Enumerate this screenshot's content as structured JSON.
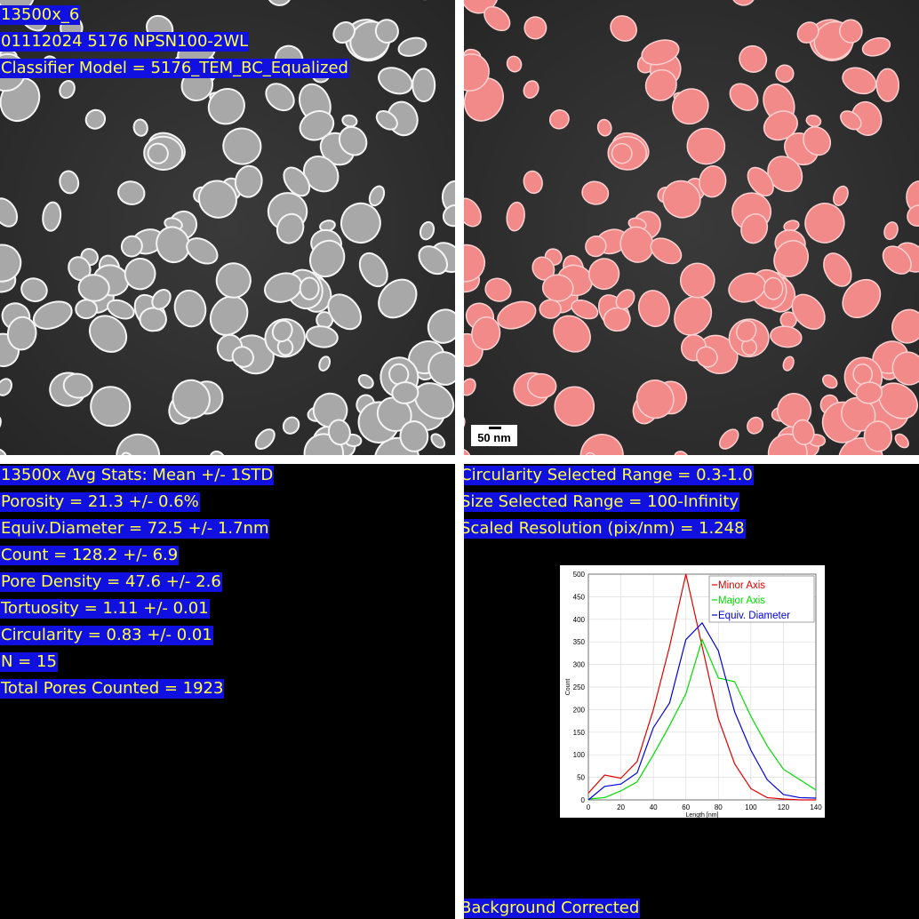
{
  "image_labels": [
    "13500x_6",
    "01112024 5176 NPSN100-2WL",
    "Classifier Model = 5176_TEM_BC_Equalized"
  ],
  "scale_bar": "50 nm",
  "stats": [
    "13500x Avg Stats: Mean +/- 1STD",
    "Porosity = 21.3 +/- 0.6%",
    "Equiv.Diameter = 72.5 +/- 1.7nm",
    "Count = 128.2 +/- 6.9",
    "Pore Density = 47.6 +/- 2.6",
    "Tortuosity = 1.11 +/- 0.01",
    "Circularity = 0.83 +/- 0.01",
    "N = 15",
    "Total Pores Counted = 1923"
  ],
  "settings": [
    "Circularity Selected Range = 0.3-1.0",
    "Size Selected Range = 100-Infinity",
    "Scaled Resolution (pix/nm) = 1.248"
  ],
  "footer": "Background Corrected",
  "chart_data": {
    "type": "line",
    "x_label": "Length [nm]",
    "y_label": "Count",
    "x": [
      0,
      10,
      20,
      30,
      40,
      50,
      60,
      70,
      80,
      90,
      100,
      110,
      120,
      130,
      140
    ],
    "series": [
      {
        "name": "Minor Axis",
        "color": "#e00000",
        "values": [
          15,
          55,
          48,
          85,
          200,
          340,
          500,
          340,
          180,
          80,
          25,
          5,
          2,
          0,
          0
        ]
      },
      {
        "name": "Major Axis",
        "color": "#00dd00",
        "values": [
          2,
          5,
          20,
          40,
          100,
          165,
          235,
          355,
          270,
          262,
          185,
          120,
          68,
          45,
          22
        ]
      },
      {
        "name": "Equiv. Diameter",
        "color": "#0000dd",
        "values": [
          0,
          30,
          35,
          60,
          160,
          215,
          355,
          392,
          330,
          195,
          110,
          45,
          12,
          5,
          4
        ]
      }
    ],
    "xlim": [
      0,
      140
    ],
    "xticks": [
      0,
      20,
      40,
      60,
      80,
      100,
      120,
      140
    ],
    "ylim": [
      0,
      500
    ],
    "yticks": [
      0,
      50,
      100,
      150,
      200,
      250,
      300,
      350,
      400,
      450,
      500
    ],
    "grid": true,
    "legend": "upper right"
  }
}
